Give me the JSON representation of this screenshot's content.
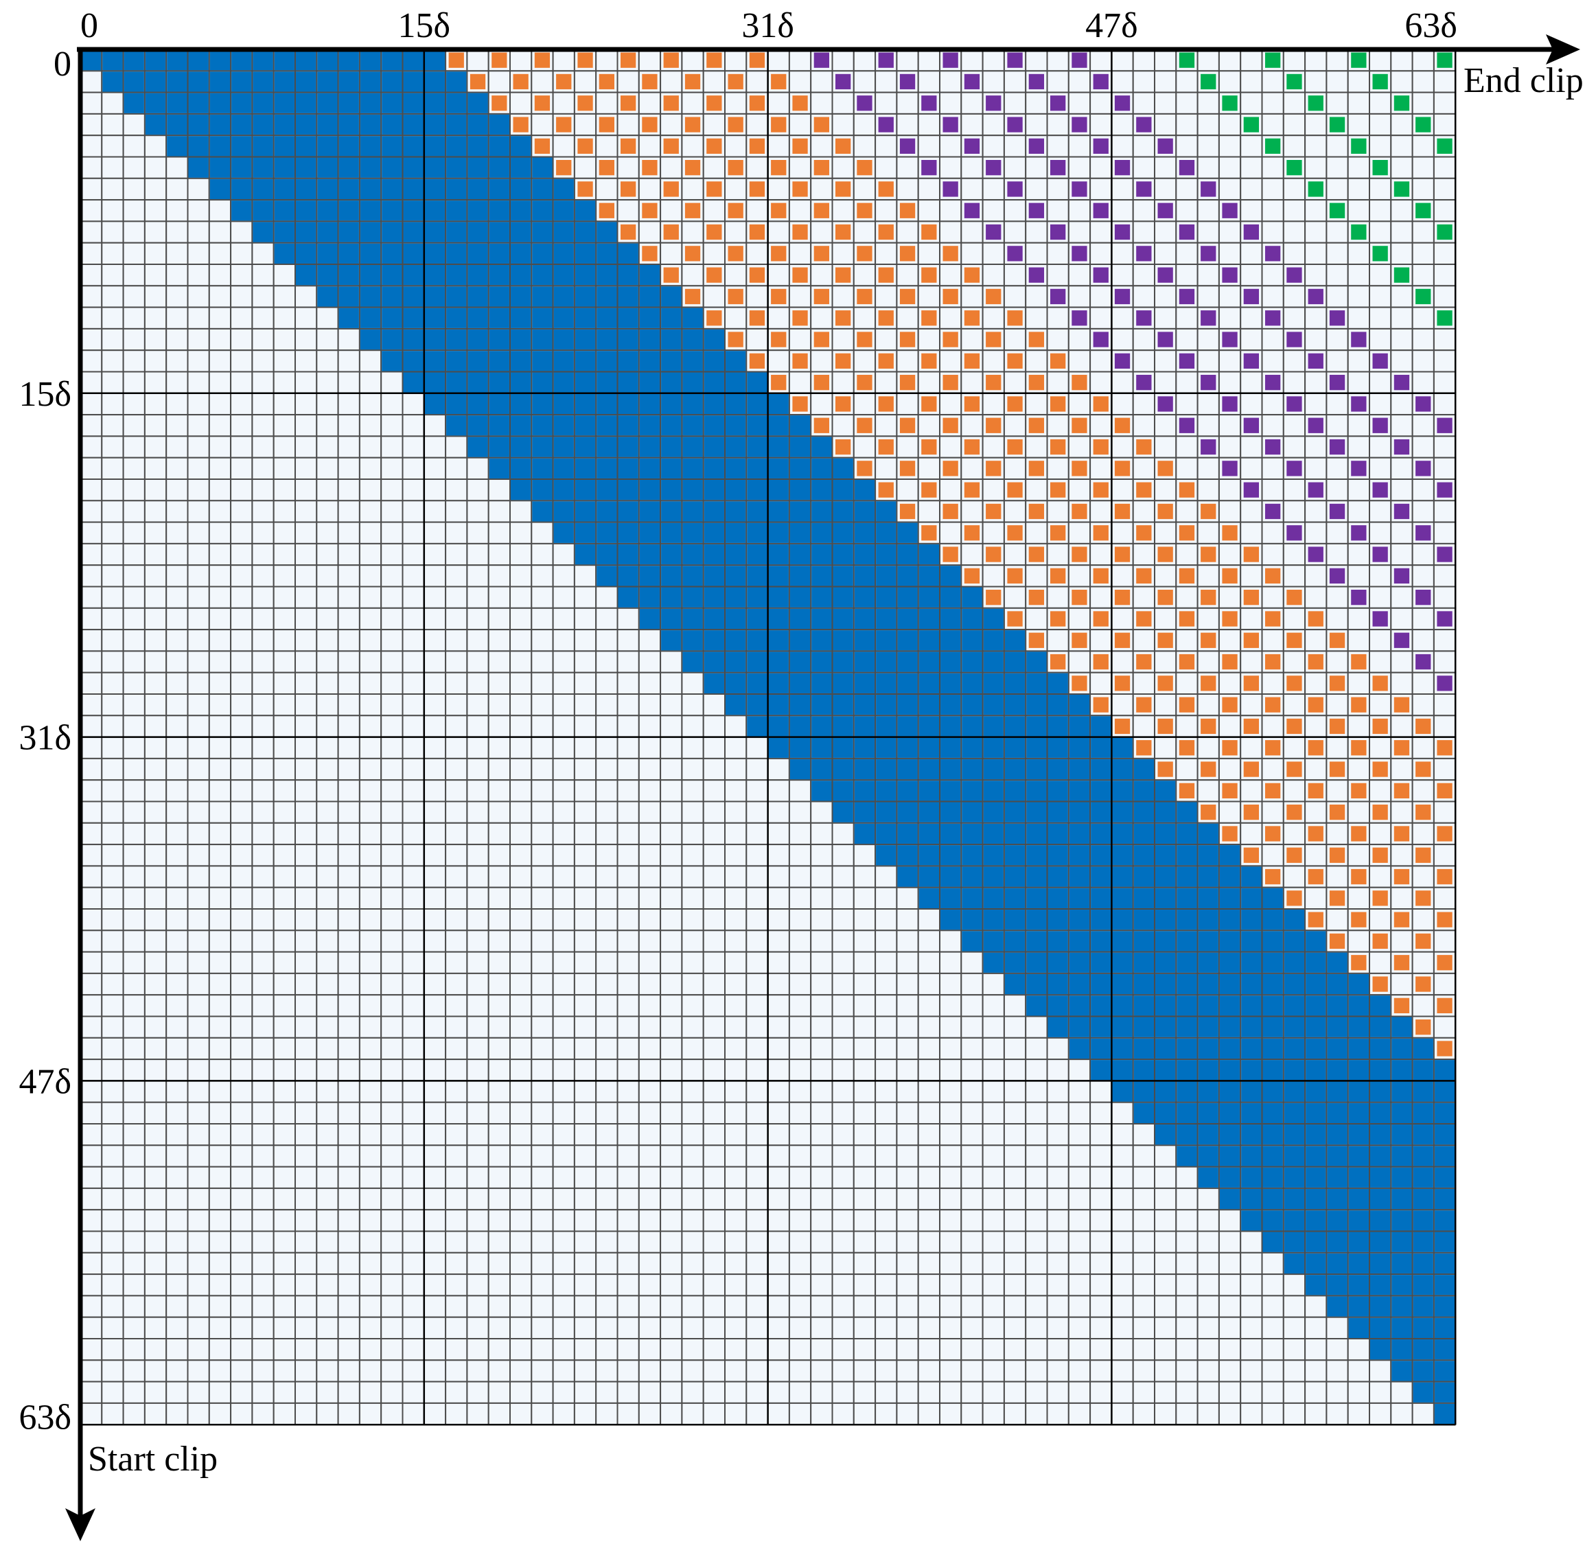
{
  "diagram": {
    "x_axis_label": "End clip",
    "y_axis_label": "Start clip",
    "x_ticks": [
      "0",
      "15δ",
      "31δ",
      "47δ",
      "63δ"
    ],
    "y_ticks": [
      "0",
      "15δ",
      "31δ",
      "47δ",
      "63δ"
    ],
    "tick_indices": [
      0,
      16,
      32,
      48,
      64
    ],
    "grid_size": 64,
    "colors": {
      "empty": "#f2f7fc",
      "empty_border": "#4d4d4d",
      "blue": "#0070c0",
      "orange": "#ed7d31",
      "purple": "#7030a0",
      "green": "#00b050"
    },
    "bands": {
      "blue": {
        "min_offset": 0,
        "max_offset": 16,
        "stride": 1
      },
      "orange": {
        "min_offset": 17,
        "max_offset": 32,
        "stride": 2
      },
      "purple": {
        "min_offset": 34,
        "max_offset": 48,
        "stride": 3
      },
      "green": {
        "min_offset": 51,
        "max_offset": 63,
        "stride": 4
      }
    }
  }
}
